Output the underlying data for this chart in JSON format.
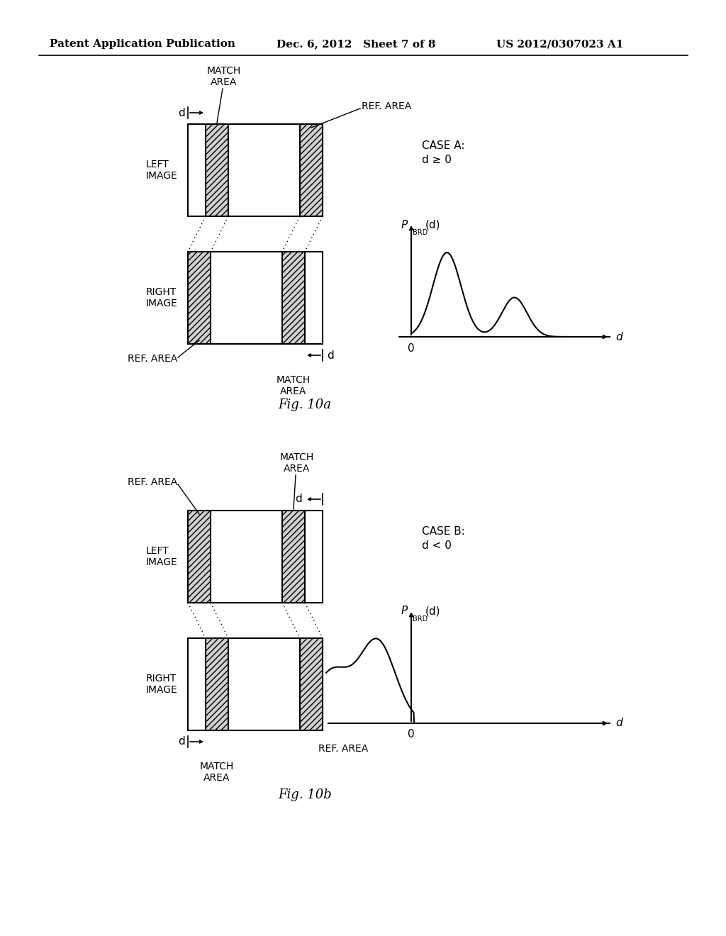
{
  "header_left": "Patent Application Publication",
  "header_mid": "Dec. 6, 2012   Sheet 7 of 8",
  "header_right": "US 2012/0307023 A1",
  "fig_label_a": "Fig. 10a",
  "fig_label_b": "Fig. 10b",
  "background_color": "#ffffff"
}
